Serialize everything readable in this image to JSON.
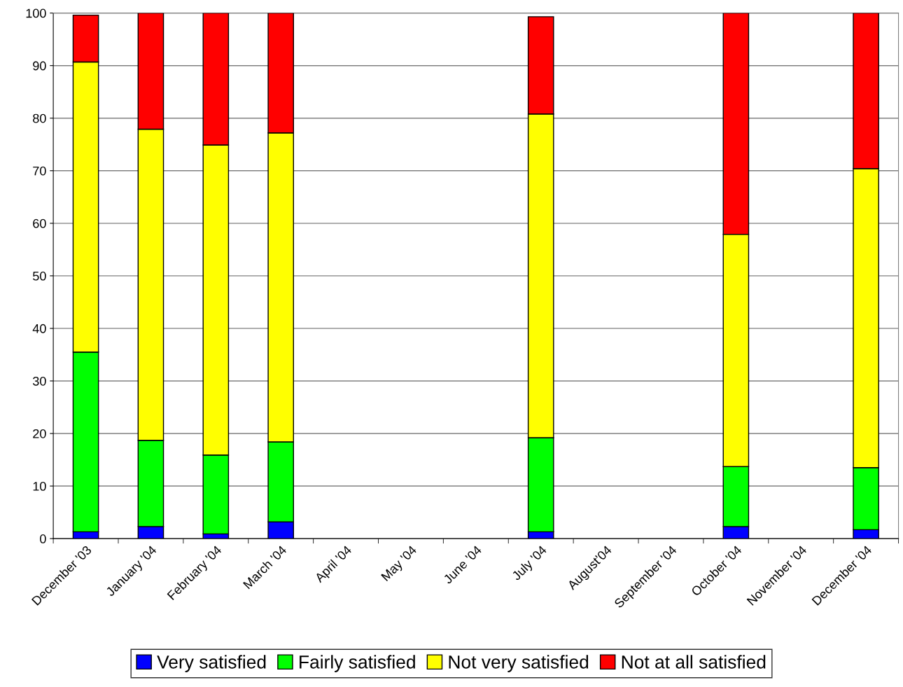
{
  "chart_data": {
    "type": "bar",
    "stacked": true,
    "categories": [
      "December '03",
      "January '04",
      "February '04",
      "March '04",
      "April '04",
      "May '04",
      "June '04",
      "July '04",
      "August'04",
      "September '04",
      "October '04",
      "November '04",
      "December '04"
    ],
    "series": [
      {
        "name": "Very satisfied",
        "color": "#0000ff",
        "values": [
          1.3,
          2.3,
          0.9,
          3.2,
          null,
          null,
          null,
          1.3,
          null,
          null,
          2.3,
          null,
          1.7
        ]
      },
      {
        "name": "Fairly satisfied",
        "color": "#00ff00",
        "values": [
          34.2,
          16.4,
          15.0,
          15.2,
          null,
          null,
          null,
          17.9,
          null,
          null,
          11.4,
          null,
          11.8
        ]
      },
      {
        "name": "Not very satisfied",
        "color": "#ffff00",
        "values": [
          55.2,
          59.2,
          59.0,
          58.8,
          null,
          null,
          null,
          61.6,
          null,
          null,
          44.2,
          null,
          56.9
        ]
      },
      {
        "name": "Not at all satisfied",
        "color": "#ff0000",
        "values": [
          8.9,
          22.1,
          25.1,
          22.8,
          null,
          null,
          null,
          18.5,
          null,
          null,
          42.1,
          null,
          29.6
        ]
      }
    ],
    "ylim": [
      0,
      100
    ],
    "yticks": [
      0,
      10,
      20,
      30,
      40,
      50,
      60,
      70,
      80,
      90,
      100
    ],
    "grid": "y",
    "legend": "bottom"
  }
}
